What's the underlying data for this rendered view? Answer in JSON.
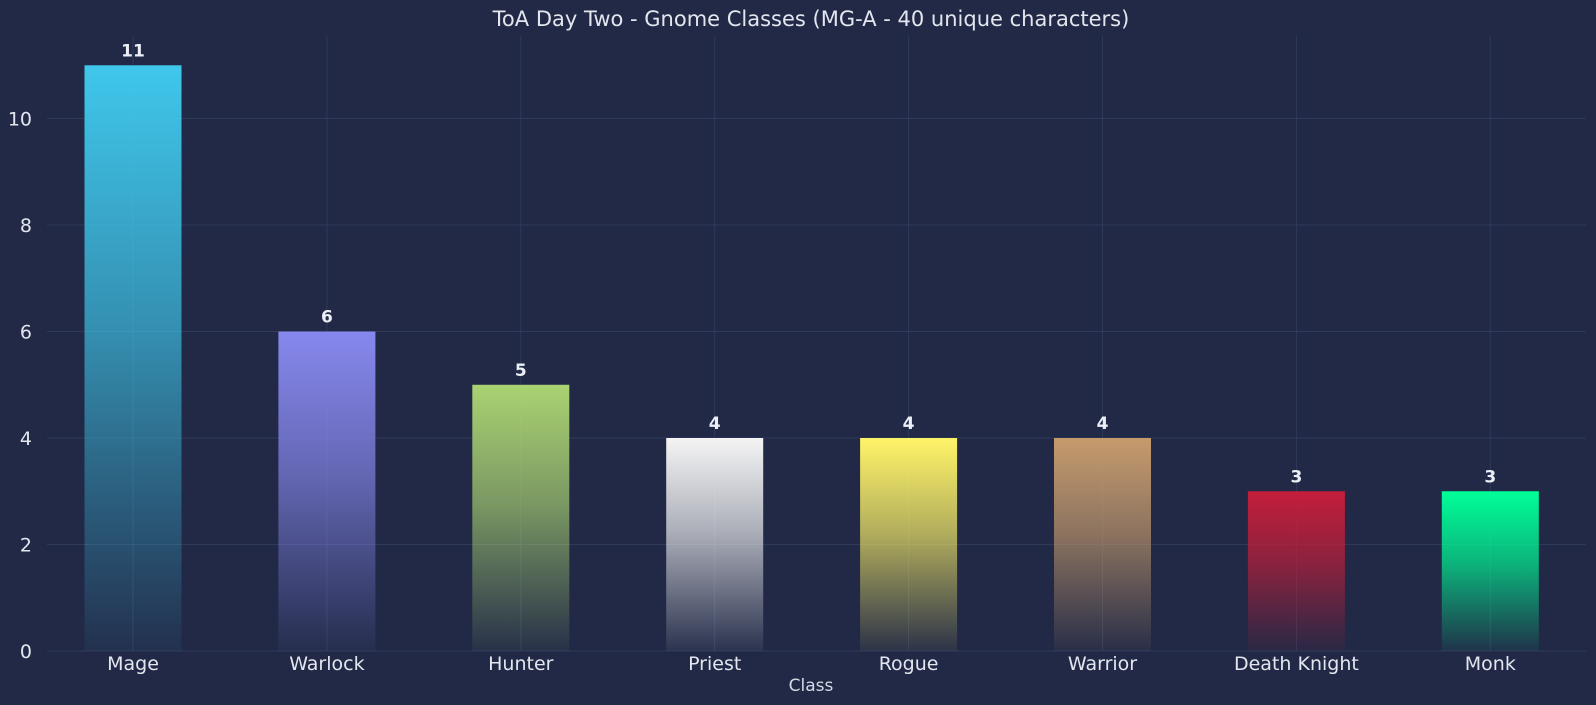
{
  "chart_data": {
    "type": "bar",
    "title": "ToA Day Two - Gnome Classes (MG-A - 40 unique characters)",
    "xlabel": "Class",
    "ylabel": "",
    "categories": [
      "Mage",
      "Warlock",
      "Hunter",
      "Priest",
      "Rogue",
      "Warrior",
      "Death Knight",
      "Monk"
    ],
    "values": [
      11,
      6,
      5,
      4,
      4,
      4,
      3,
      3
    ],
    "colors": [
      "#3fc7eb",
      "#8788ee",
      "#aad372",
      "#f4f4f4",
      "#fff468",
      "#c69b6d",
      "#c41e3a",
      "#00ff98"
    ],
    "ylim": [
      0,
      11.55
    ],
    "yticks": [
      0,
      2,
      4,
      6,
      8,
      10
    ],
    "grid": true,
    "background": "#212946"
  }
}
